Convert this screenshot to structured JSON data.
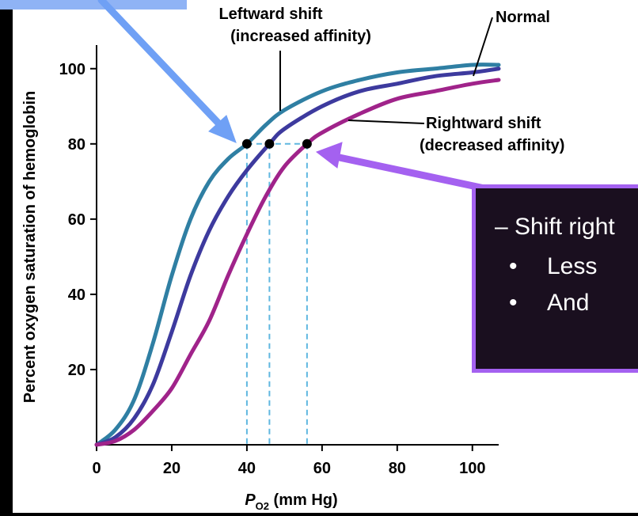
{
  "chart_data": {
    "type": "line",
    "xlabel": "P",
    "xlabel_sub": "O2",
    "xlabel_unit": " (mm Hg)",
    "ylabel": "Percent oxygen saturation of hemoglobin",
    "xlim": [
      0,
      107
    ],
    "ylim": [
      0,
      105
    ],
    "x_ticks": [
      0,
      20,
      40,
      60,
      80,
      100
    ],
    "y_ticks": [
      20,
      40,
      60,
      80,
      100
    ],
    "grid": false,
    "series": [
      {
        "name": "Leftward shift",
        "color": "#2f7fa3",
        "x": [
          0,
          5,
          10,
          15,
          20,
          25,
          30,
          35,
          40,
          45,
          50,
          60,
          70,
          80,
          90,
          100,
          107
        ],
        "y": [
          0,
          4,
          12,
          27,
          45,
          60,
          70,
          76,
          80,
          85,
          89,
          94,
          97,
          99,
          100,
          101,
          101
        ]
      },
      {
        "name": "Normal",
        "color": "#3d3a9e",
        "x": [
          0,
          5,
          10,
          15,
          20,
          25,
          30,
          35,
          40,
          46,
          50,
          60,
          70,
          80,
          90,
          100,
          107
        ],
        "y": [
          0,
          2,
          7,
          16,
          30,
          45,
          57,
          66,
          73,
          80,
          84,
          90,
          94,
          96,
          98,
          99,
          100
        ]
      },
      {
        "name": "Rightward shift",
        "color": "#a0238a",
        "x": [
          0,
          5,
          10,
          15,
          20,
          25,
          30,
          35,
          40,
          45,
          50,
          56,
          60,
          70,
          80,
          90,
          100,
          107
        ],
        "y": [
          0,
          1,
          4,
          9,
          15,
          24,
          33,
          45,
          56,
          66,
          74,
          80,
          83,
          88,
          92,
          94,
          96,
          97
        ]
      }
    ],
    "markers": [
      {
        "x": 40,
        "y": 80
      },
      {
        "x": 46,
        "y": 80
      },
      {
        "x": 56,
        "y": 80
      }
    ],
    "annotations": {
      "left_line1": "Leftward shift",
      "left_line2": "(increased affinity)",
      "normal": "Normal",
      "right_line1": "Rightward shift",
      "right_line2": "(decreased affinity)"
    }
  },
  "callout": {
    "line1": "– Shift right",
    "bullet1": "Less",
    "bullet2": "And",
    "bullet_char": "•"
  },
  "colors": {
    "blue_arrow": "#6fa0f5",
    "purple_arrow": "#a461f0",
    "guide": "#5fb7e0"
  }
}
